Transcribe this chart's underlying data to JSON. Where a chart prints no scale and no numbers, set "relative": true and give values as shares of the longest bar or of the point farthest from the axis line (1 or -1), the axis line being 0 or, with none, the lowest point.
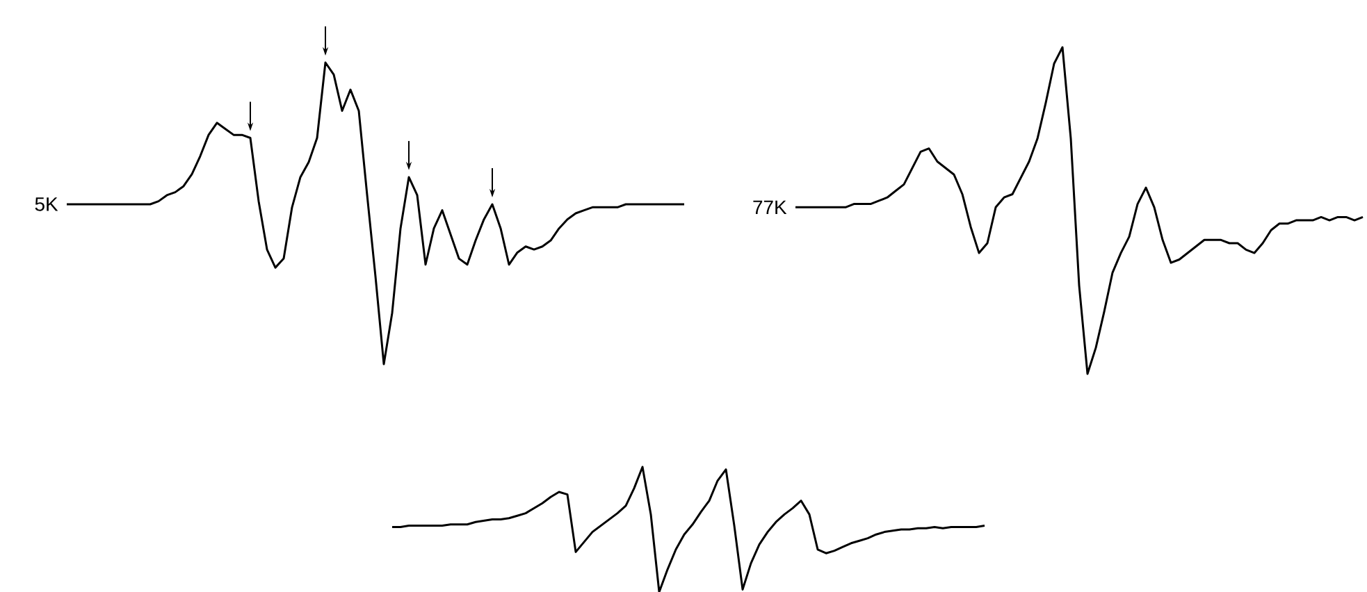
{
  "chart_data": [
    {
      "type": "line",
      "relative": true,
      "categories": [
        null,
        null,
        null,
        null,
        null,
        null,
        null,
        null,
        null,
        null,
        null,
        null,
        null,
        null,
        null,
        null,
        null,
        null,
        null,
        null,
        null,
        null,
        null,
        null,
        null,
        null,
        null,
        null,
        null,
        null,
        null,
        null,
        null,
        null,
        null,
        null,
        null,
        null,
        null,
        null,
        null,
        null,
        null,
        null,
        null,
        null,
        null,
        null,
        null,
        null,
        null,
        null,
        null,
        null,
        null,
        null,
        null,
        null,
        null,
        null,
        null,
        null,
        null,
        null,
        null,
        null,
        null,
        null,
        null,
        null,
        null,
        null,
        null,
        null,
        null
      ],
      "series": [
        {
          "name": "5K",
          "color": "#000000",
          "values": [
            0.53,
            0.53,
            0.53,
            0.53,
            0.53,
            0.53,
            0.53,
            0.53,
            0.53,
            0.53,
            0.53,
            0.54,
            0.56,
            0.57,
            0.59,
            0.63,
            0.69,
            0.76,
            0.8,
            0.78,
            0.76,
            0.76,
            0.75,
            0.54,
            0.38,
            0.32,
            0.35,
            0.52,
            0.62,
            0.67,
            0.75,
            1.0,
            0.96,
            0.84,
            0.91,
            0.84,
            0.56,
            0.29,
            0.0,
            0.17,
            0.45,
            0.62,
            0.56,
            0.33,
            0.45,
            0.51,
            0.43,
            0.35,
            0.33,
            0.41,
            0.48,
            0.53,
            0.45,
            0.33,
            0.37,
            0.39,
            0.38,
            0.39,
            0.41,
            0.45,
            0.48,
            0.5,
            0.51,
            0.52,
            0.52,
            0.52,
            0.52,
            0.53,
            0.53,
            0.53,
            0.53,
            0.53,
            0.53,
            0.53,
            0.53
          ]
        }
      ]
    },
    {
      "type": "line",
      "relative": true,
      "categories": [
        null,
        null,
        null,
        null,
        null,
        null,
        null,
        null,
        null,
        null,
        null,
        null,
        null,
        null,
        null,
        null,
        null,
        null,
        null,
        null,
        null,
        null,
        null,
        null,
        null,
        null,
        null,
        null,
        null,
        null,
        null,
        null,
        null,
        null,
        null,
        null,
        null,
        null,
        null,
        null,
        null,
        null,
        null,
        null,
        null,
        null,
        null,
        null,
        null,
        null,
        null,
        null,
        null,
        null,
        null,
        null,
        null,
        null,
        null,
        null,
        null,
        null,
        null,
        null,
        null,
        null,
        null,
        null,
        null
      ],
      "series": [
        {
          "name": "77K",
          "color": "#000000",
          "values": [
            0.51,
            0.51,
            0.51,
            0.51,
            0.51,
            0.51,
            0.51,
            0.52,
            0.52,
            0.52,
            0.53,
            0.54,
            0.56,
            0.58,
            0.63,
            0.68,
            0.69,
            0.65,
            0.63,
            0.61,
            0.55,
            0.45,
            0.37,
            0.4,
            0.51,
            0.54,
            0.55,
            0.6,
            0.65,
            0.72,
            0.83,
            0.95,
            1.0,
            0.72,
            0.27,
            0.0,
            0.08,
            0.19,
            0.31,
            0.37,
            0.42,
            0.52,
            0.57,
            0.51,
            0.41,
            0.34,
            0.35,
            0.37,
            0.39,
            0.41,
            0.41,
            0.41,
            0.4,
            0.4,
            0.38,
            0.37,
            0.4,
            0.44,
            0.46,
            0.46,
            0.47,
            0.47,
            0.47,
            0.48,
            0.47,
            0.48,
            0.48,
            0.47,
            0.48
          ]
        }
      ]
    },
    {
      "type": "line",
      "relative": true,
      "categories": [
        null,
        null,
        null,
        null,
        null,
        null,
        null,
        null,
        null,
        null,
        null,
        null,
        null,
        null,
        null,
        null,
        null,
        null,
        null,
        null,
        null,
        null,
        null,
        null,
        null,
        null,
        null,
        null,
        null,
        null,
        null,
        null,
        null,
        null,
        null,
        null,
        null,
        null,
        null,
        null,
        null,
        null,
        null,
        null,
        null,
        null,
        null,
        null,
        null,
        null,
        null,
        null,
        null,
        null,
        null,
        null,
        null,
        null,
        null,
        null,
        null,
        null,
        null,
        null,
        null,
        null,
        null,
        null,
        null,
        null,
        null,
        null
      ],
      "series": [
        {
          "color": "#000000",
          "values": [
            0.52,
            0.52,
            0.53,
            0.53,
            0.53,
            0.53,
            0.53,
            0.54,
            0.54,
            0.54,
            0.56,
            0.57,
            0.58,
            0.58,
            0.59,
            0.61,
            0.63,
            0.67,
            0.71,
            0.76,
            0.8,
            0.78,
            0.32,
            0.4,
            0.48,
            0.53,
            0.58,
            0.63,
            0.69,
            0.83,
            1.0,
            0.62,
            0.0,
            0.18,
            0.34,
            0.46,
            0.54,
            0.64,
            0.73,
            0.89,
            0.98,
            0.53,
            0.02,
            0.23,
            0.38,
            0.48,
            0.56,
            0.62,
            0.67,
            0.73,
            0.62,
            0.34,
            0.31,
            0.33,
            0.36,
            0.39,
            0.41,
            0.43,
            0.46,
            0.48,
            0.49,
            0.5,
            0.5,
            0.51,
            0.51,
            0.52,
            0.51,
            0.52,
            0.52,
            0.52,
            0.52,
            0.53
          ]
        }
      ]
    }
  ]
}
